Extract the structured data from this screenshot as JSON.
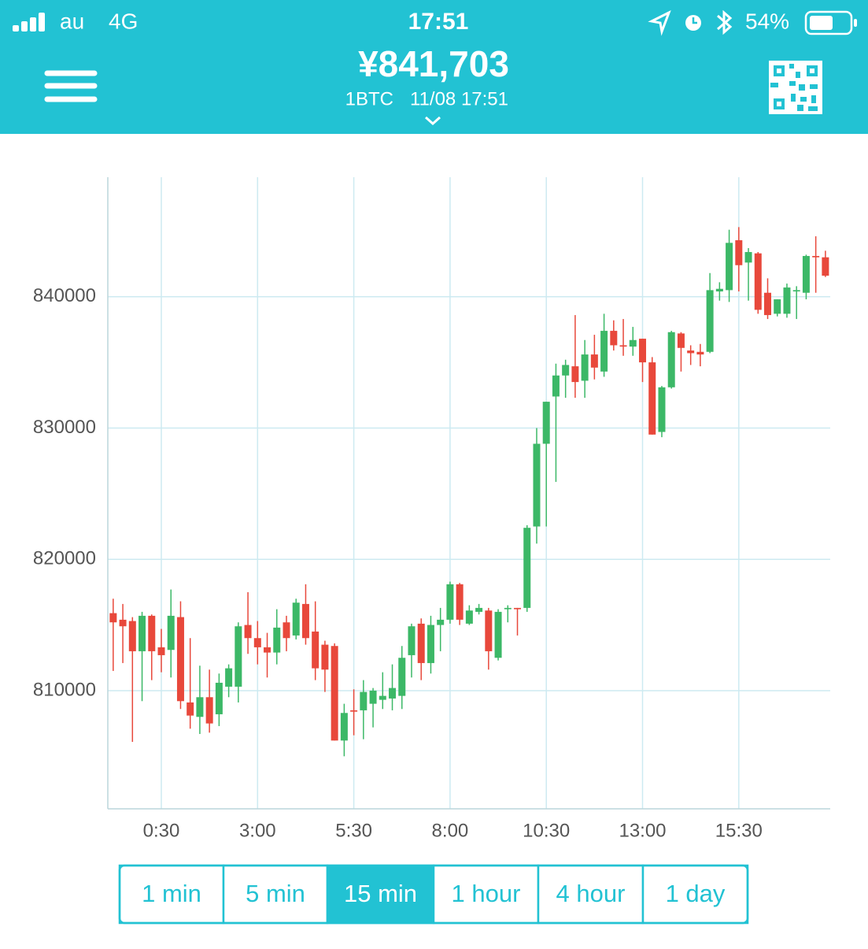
{
  "status_bar": {
    "carrier": "au",
    "network": "4G",
    "time": "17:51",
    "battery": "54%"
  },
  "header": {
    "price": "¥841,703",
    "pair": "1BTC",
    "timestamp": "11/08 17:51"
  },
  "chart_data": {
    "type": "candlestick",
    "x": [
      -0.75,
      -0.5,
      -0.25,
      0,
      0.25,
      0.5,
      0.75,
      1,
      1.25,
      1.5,
      1.75,
      2,
      2.25,
      2.5,
      2.75,
      3,
      3.25,
      3.5,
      3.75,
      4,
      4.25,
      4.5,
      4.75,
      5,
      5.25,
      5.5,
      5.75,
      6,
      6.25,
      6.5,
      6.75,
      7,
      7.25,
      7.5,
      7.75,
      8,
      8.25,
      8.5,
      8.75,
      9,
      9.25,
      9.5,
      9.75,
      10,
      10.25,
      10.5,
      10.75,
      11,
      11.25,
      11.5,
      11.75,
      12,
      12.25,
      12.5,
      12.75,
      13,
      13.25,
      13.5,
      13.75,
      14,
      14.25,
      14.5,
      14.75,
      15,
      15.25,
      15.5,
      15.75,
      16,
      16.25,
      16.5,
      16.75,
      17,
      17.25,
      17.5,
      17.75
    ],
    "open": [
      815900,
      815400,
      815300,
      813000,
      815700,
      813300,
      813100,
      815600,
      809100,
      808000,
      809500,
      808200,
      810300,
      810300,
      815000,
      814000,
      813300,
      812900,
      815200,
      814200,
      816600,
      814500,
      813500,
      813400,
      806200,
      808500,
      808500,
      809000,
      809300,
      809400,
      809600,
      812700,
      815100,
      812100,
      815000,
      815400,
      818100,
      815100,
      816000,
      816100,
      812500,
      816200,
      816300,
      816300,
      822500,
      828800,
      832400,
      834000,
      834700,
      833600,
      835600,
      834300,
      837400,
      836300,
      836200,
      836800,
      835000,
      829700,
      833100,
      837200,
      835900,
      835800,
      835800,
      840400,
      840500,
      844300,
      842600,
      843300,
      840300,
      838700,
      838700,
      840400,
      840300,
      843100,
      843000
    ],
    "high": [
      817000,
      816600,
      815600,
      816000,
      815800,
      814700,
      817700,
      816800,
      814000,
      811900,
      811600,
      811300,
      812000,
      815200,
      817500,
      815300,
      814400,
      816200,
      815700,
      817000,
      818100,
      816800,
      813800,
      813600,
      809000,
      810100,
      810800,
      810200,
      811400,
      812000,
      813400,
      815100,
      815500,
      815700,
      816300,
      818300,
      818200,
      816500,
      816600,
      816300,
      816200,
      816500,
      816300,
      822600,
      830000,
      832000,
      834900,
      835200,
      838600,
      836700,
      837100,
      838700,
      838200,
      838300,
      837700,
      836800,
      835400,
      833200,
      837400,
      837300,
      836300,
      836400,
      841800,
      841100,
      845100,
      845300,
      843700,
      843400,
      841400,
      839800,
      841000,
      840800,
      843200,
      844600,
      843500
    ],
    "low": [
      811500,
      812100,
      806100,
      809200,
      810800,
      811400,
      811000,
      808600,
      807100,
      806700,
      806800,
      807300,
      809500,
      809100,
      812800,
      812000,
      811000,
      812000,
      813000,
      813900,
      813500,
      810800,
      809900,
      806200,
      805000,
      806600,
      806300,
      807200,
      808600,
      808500,
      808600,
      811000,
      810800,
      811300,
      813000,
      815100,
      815000,
      815000,
      815800,
      811600,
      812300,
      815200,
      814200,
      816000,
      821200,
      822500,
      825900,
      832300,
      832300,
      832300,
      833700,
      833900,
      835900,
      835500,
      835500,
      833500,
      829500,
      829300,
      833000,
      834300,
      834800,
      834700,
      835700,
      839700,
      839600,
      840400,
      839700,
      838700,
      838300,
      838500,
      838400,
      838300,
      839800,
      840300,
      841500
    ],
    "close": [
      815200,
      814900,
      813000,
      815700,
      813000,
      812700,
      815700,
      809200,
      808100,
      809500,
      807500,
      810600,
      811700,
      814900,
      814000,
      813300,
      812900,
      814800,
      814000,
      816700,
      814000,
      811700,
      811600,
      806200,
      808300,
      808400,
      809900,
      810000,
      809600,
      810200,
      812500,
      814900,
      812100,
      815000,
      815400,
      818100,
      815400,
      816100,
      816300,
      813000,
      816000,
      816300,
      816200,
      822400,
      828800,
      832000,
      834000,
      834800,
      833500,
      835600,
      834600,
      837400,
      836300,
      836200,
      836700,
      835000,
      829500,
      833100,
      837300,
      836100,
      835700,
      835600,
      840500,
      840600,
      844100,
      842400,
      843400,
      839000,
      838600,
      839800,
      840700,
      840500,
      843100,
      843000,
      841600
    ],
    "up_color": "#3cb867",
    "down_color": "#e8483b",
    "xlim": [
      -0.89,
      17.875
    ],
    "ylim": [
      801000,
      849100
    ],
    "xticks": [
      {
        "value": 0.5,
        "label": "0:30"
      },
      {
        "value": 3,
        "label": "3:00"
      },
      {
        "value": 5.5,
        "label": "5:30"
      },
      {
        "value": 8,
        "label": "8:00"
      },
      {
        "value": 10.5,
        "label": "10:30"
      },
      {
        "value": 13,
        "label": "13:00"
      },
      {
        "value": 15.5,
        "label": "15:30"
      }
    ],
    "yticks": [
      810000,
      820000,
      830000,
      840000
    ],
    "grid": true
  },
  "tabs": {
    "labels": [
      "1 min",
      "5 min",
      "15 min",
      "1 hour",
      "4 hour",
      "1 day"
    ],
    "selected": 2
  }
}
